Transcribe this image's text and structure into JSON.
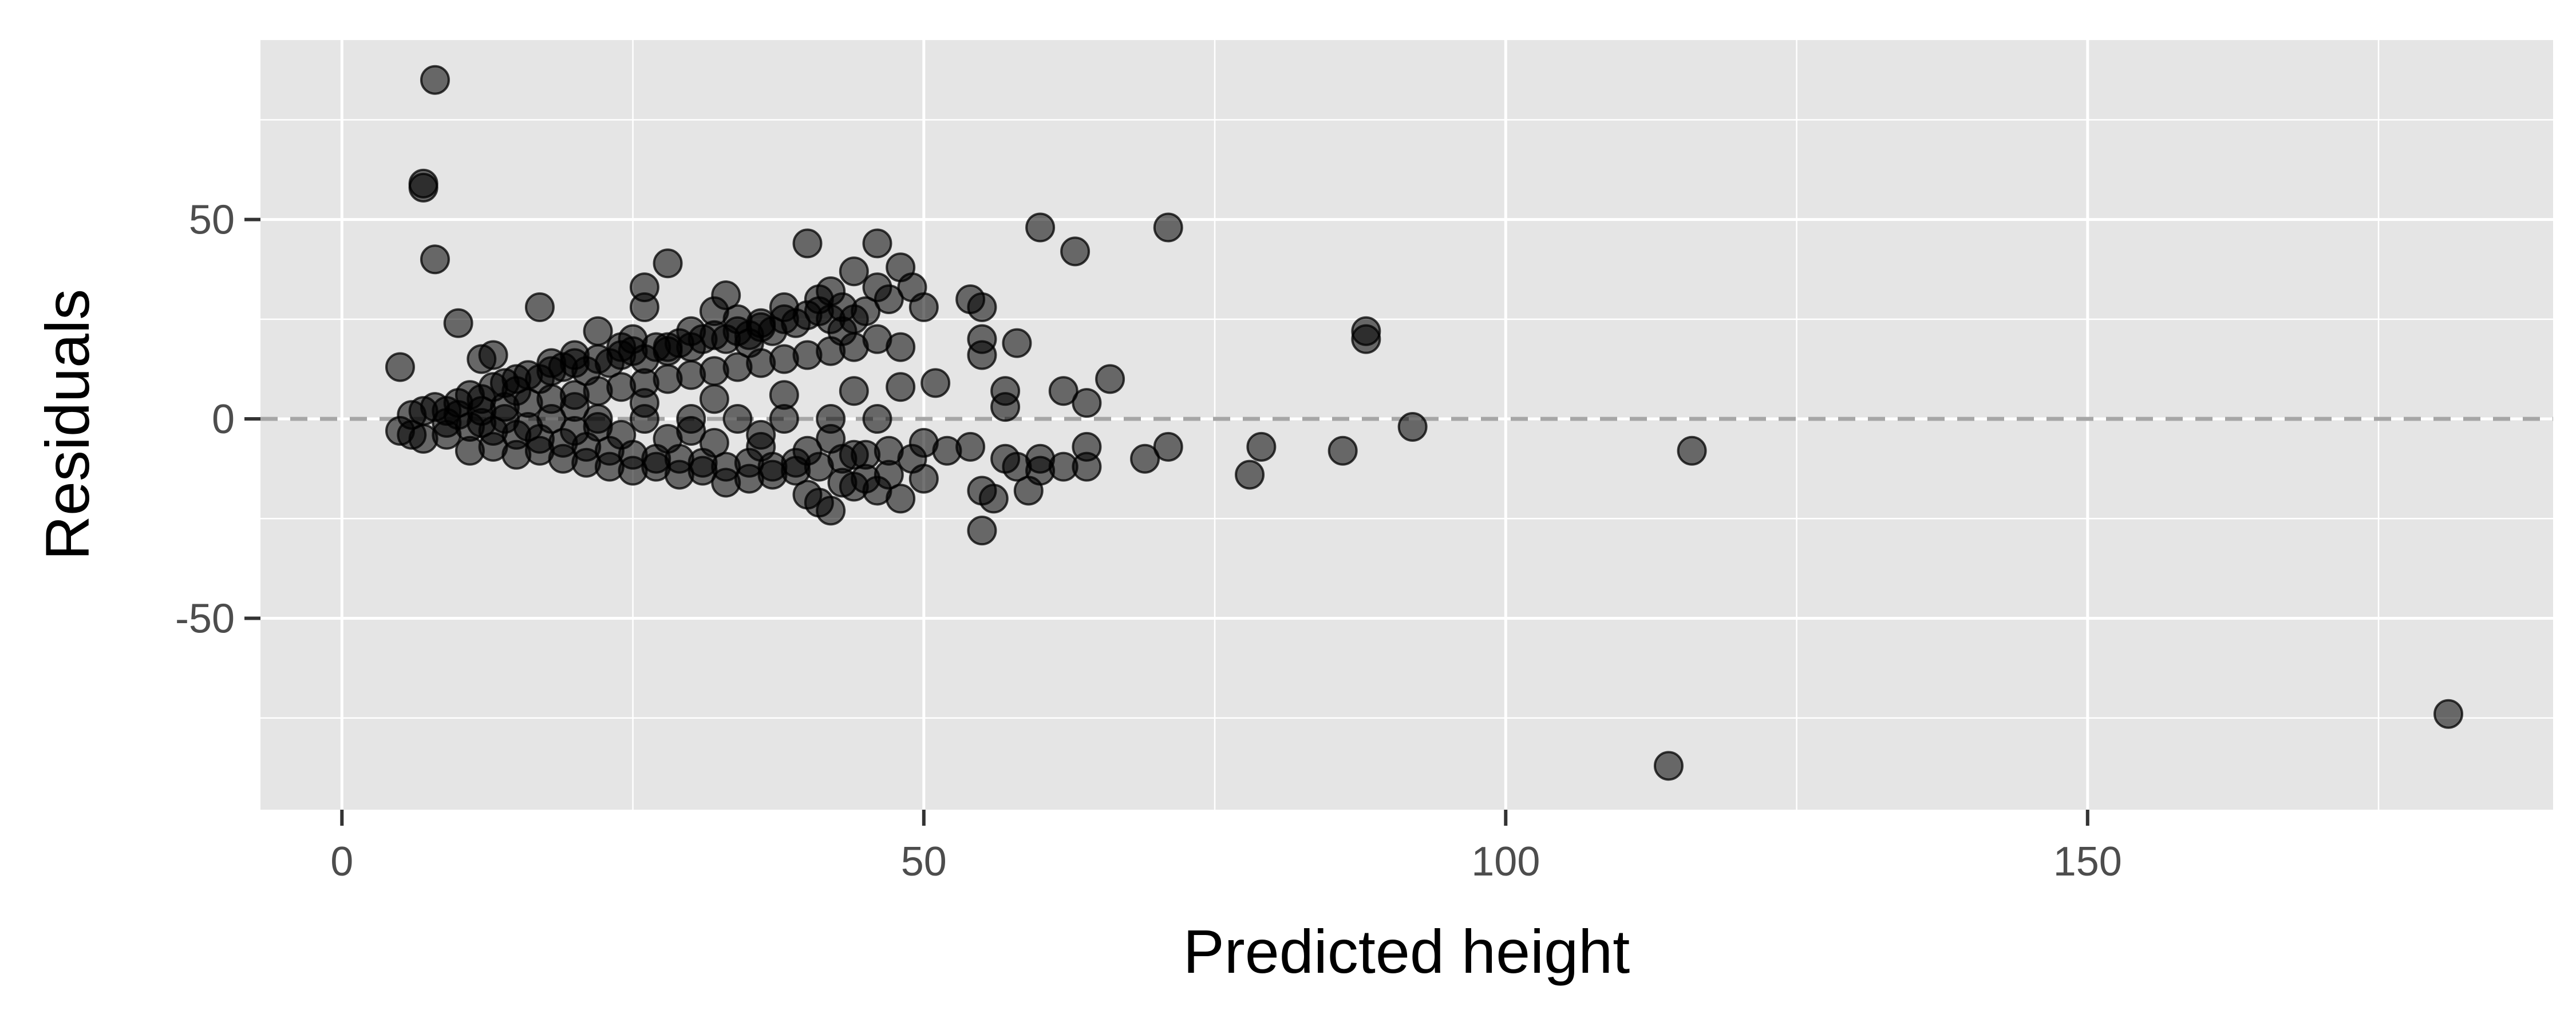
{
  "chart_data": {
    "type": "scatter",
    "title": "",
    "xlabel": "Predicted height",
    "ylabel": "Residuals",
    "xlim": [
      -7,
      190
    ],
    "ylim": [
      -98,
      95
    ],
    "x_ticks": [
      0,
      50,
      100,
      150
    ],
    "x_tick_labels": [
      "0",
      "50",
      "100",
      "150"
    ],
    "y_ticks": [
      -50,
      0,
      50
    ],
    "y_tick_labels": [
      "-50",
      "0",
      "50"
    ],
    "grid": true,
    "reference_line": {
      "y": 0,
      "style": "dashed",
      "color": "#a6a6a6"
    },
    "colors": {
      "panel": "#e5e5e5",
      "grid": "#ffffff",
      "point": "#000000",
      "point_opacity": 0.55
    },
    "series": [
      {
        "points": [
          [
            8,
            85
          ],
          [
            7,
            59
          ],
          [
            7,
            58
          ],
          [
            8,
            40
          ],
          [
            5,
            13
          ],
          [
            10,
            24
          ],
          [
            17,
            28
          ],
          [
            12,
            15
          ],
          [
            13,
            16
          ],
          [
            15,
            10
          ],
          [
            18,
            14
          ],
          [
            20,
            16
          ],
          [
            22,
            22
          ],
          [
            24,
            18
          ],
          [
            25,
            20
          ],
          [
            26,
            33
          ],
          [
            28,
            39
          ],
          [
            26,
            28
          ],
          [
            28,
            18
          ],
          [
            30,
            22
          ],
          [
            32,
            27
          ],
          [
            33,
            31
          ],
          [
            34,
            25
          ],
          [
            35,
            19
          ],
          [
            36,
            24
          ],
          [
            38,
            28
          ],
          [
            40,
            44
          ],
          [
            41,
            30
          ],
          [
            42,
            32
          ],
          [
            43,
            22
          ],
          [
            44,
            37
          ],
          [
            44,
            25
          ],
          [
            46,
            44
          ],
          [
            46,
            33
          ],
          [
            47,
            30
          ],
          [
            45,
            27
          ],
          [
            46,
            20
          ],
          [
            48,
            38
          ],
          [
            48,
            18
          ],
          [
            49,
            33
          ],
          [
            50,
            28
          ],
          [
            48,
            8
          ],
          [
            51,
            9
          ],
          [
            54,
            30
          ],
          [
            55,
            28
          ],
          [
            55,
            20
          ],
          [
            55,
            16
          ],
          [
            57,
            7
          ],
          [
            57,
            3
          ],
          [
            58,
            19
          ],
          [
            60,
            48
          ],
          [
            63,
            42
          ],
          [
            62,
            7
          ],
          [
            64,
            4
          ],
          [
            66,
            10
          ],
          [
            71,
            48
          ],
          [
            88,
            22
          ],
          [
            88,
            20
          ],
          [
            92,
            -2
          ],
          [
            5,
            -3
          ],
          [
            6,
            -4
          ],
          [
            7,
            -5
          ],
          [
            9,
            -4
          ],
          [
            11,
            -8
          ],
          [
            13,
            -7
          ],
          [
            15,
            -9
          ],
          [
            17,
            -8
          ],
          [
            19,
            -10
          ],
          [
            21,
            -11
          ],
          [
            23,
            -12
          ],
          [
            25,
            -13
          ],
          [
            27,
            -12
          ],
          [
            29,
            -14
          ],
          [
            31,
            -13
          ],
          [
            33,
            -16
          ],
          [
            35,
            -15
          ],
          [
            37,
            -14
          ],
          [
            39,
            -13
          ],
          [
            40,
            -19
          ],
          [
            41,
            -21
          ],
          [
            42,
            -23
          ],
          [
            43,
            -16
          ],
          [
            44,
            -17
          ],
          [
            45,
            -15
          ],
          [
            46,
            -18
          ],
          [
            47,
            -14
          ],
          [
            48,
            -20
          ],
          [
            49,
            -10
          ],
          [
            50,
            -15
          ],
          [
            50,
            -6
          ],
          [
            52,
            -8
          ],
          [
            54,
            -7
          ],
          [
            55,
            -28
          ],
          [
            55,
            -18
          ],
          [
            56,
            -20
          ],
          [
            57,
            -10
          ],
          [
            58,
            -12
          ],
          [
            59,
            -18
          ],
          [
            60,
            -13
          ],
          [
            60,
            -10
          ],
          [
            62,
            -12
          ],
          [
            64,
            -7
          ],
          [
            64,
            -12
          ],
          [
            69,
            -10
          ],
          [
            71,
            -7
          ],
          [
            78,
            -14
          ],
          [
            79,
            -7
          ],
          [
            86,
            -8
          ],
          [
            116,
            -8
          ],
          [
            114,
            -87
          ],
          [
            181,
            -74
          ],
          [
            6,
            1
          ],
          [
            7,
            2
          ],
          [
            8,
            3
          ],
          [
            9,
            2
          ],
          [
            10,
            4
          ],
          [
            11,
            6
          ],
          [
            12,
            5
          ],
          [
            13,
            8
          ],
          [
            14,
            9
          ],
          [
            15,
            7
          ],
          [
            16,
            11
          ],
          [
            17,
            10
          ],
          [
            18,
            12
          ],
          [
            19,
            13
          ],
          [
            20,
            14
          ],
          [
            21,
            12
          ],
          [
            22,
            15
          ],
          [
            23,
            14
          ],
          [
            24,
            16
          ],
          [
            25,
            17
          ],
          [
            26,
            15
          ],
          [
            27,
            18
          ],
          [
            28,
            17
          ],
          [
            29,
            19
          ],
          [
            30,
            18
          ],
          [
            31,
            20
          ],
          [
            32,
            21
          ],
          [
            33,
            20
          ],
          [
            34,
            22
          ],
          [
            35,
            21
          ],
          [
            36,
            23
          ],
          [
            37,
            22
          ],
          [
            38,
            25
          ],
          [
            39,
            24
          ],
          [
            40,
            26
          ],
          [
            41,
            27
          ],
          [
            42,
            25
          ],
          [
            43,
            28
          ],
          [
            9,
            -1
          ],
          [
            11,
            -2
          ],
          [
            13,
            -3
          ],
          [
            15,
            -4
          ],
          [
            17,
            -5
          ],
          [
            19,
            -6
          ],
          [
            21,
            -7
          ],
          [
            23,
            -8
          ],
          [
            25,
            -9
          ],
          [
            27,
            -10
          ],
          [
            29,
            -10
          ],
          [
            31,
            -11
          ],
          [
            33,
            -12
          ],
          [
            35,
            -11
          ],
          [
            37,
            -12
          ],
          [
            39,
            -11
          ],
          [
            41,
            -12
          ],
          [
            43,
            -10
          ],
          [
            45,
            -9
          ],
          [
            47,
            -8
          ],
          [
            10,
            1
          ],
          [
            12,
            2
          ],
          [
            14,
            3
          ],
          [
            16,
            4
          ],
          [
            18,
            5
          ],
          [
            20,
            6
          ],
          [
            22,
            7
          ],
          [
            24,
            8
          ],
          [
            26,
            9
          ],
          [
            28,
            10
          ],
          [
            30,
            11
          ],
          [
            32,
            12
          ],
          [
            34,
            13
          ],
          [
            36,
            14
          ],
          [
            38,
            15
          ],
          [
            40,
            16
          ],
          [
            42,
            17
          ],
          [
            44,
            18
          ],
          [
            12,
            -1
          ],
          [
            16,
            -2
          ],
          [
            20,
            -3
          ],
          [
            24,
            -4
          ],
          [
            28,
            -5
          ],
          [
            32,
            -6
          ],
          [
            36,
            -7
          ],
          [
            40,
            -8
          ],
          [
            44,
            -9
          ],
          [
            14,
            0
          ],
          [
            18,
            0
          ],
          [
            22,
            0
          ],
          [
            26,
            0
          ],
          [
            30,
            0
          ],
          [
            34,
            0
          ],
          [
            38,
            0
          ],
          [
            42,
            0
          ],
          [
            46,
            0
          ],
          [
            20,
            3
          ],
          [
            26,
            4
          ],
          [
            32,
            5
          ],
          [
            38,
            6
          ],
          [
            44,
            7
          ],
          [
            22,
            -2
          ],
          [
            30,
            -3
          ],
          [
            36,
            -4
          ],
          [
            42,
            -5
          ]
        ]
      }
    ]
  }
}
